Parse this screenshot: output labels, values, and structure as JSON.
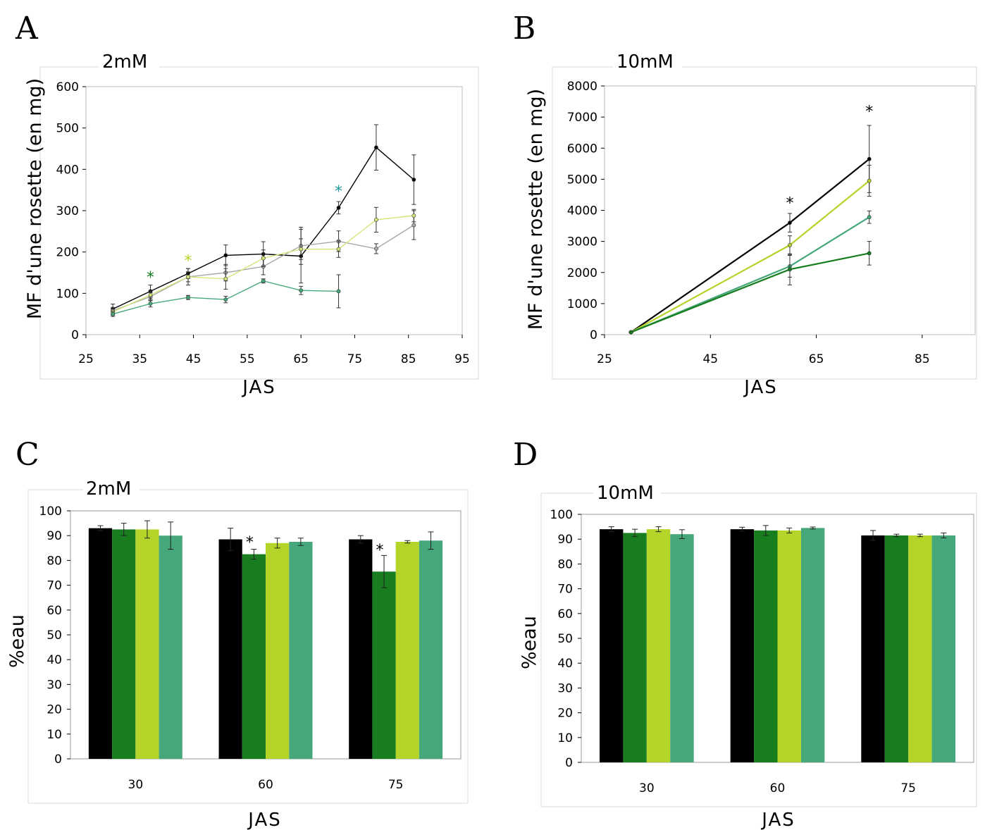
{
  "colors": {
    "black": "#000000",
    "dark_green": "#177d1f",
    "yellow_green": "#b4d42a",
    "teal_green": "#46a77a",
    "gray": "#a8a8a8",
    "light_yellow": "#d6e57a",
    "star_teal": "#1a9a9a"
  },
  "chart_data": [
    {
      "panel": "A",
      "type": "line",
      "title": "2mM",
      "xlabel": "JAS",
      "ylabel": "MF d'une rosette (en mg)",
      "xlim": [
        25,
        95
      ],
      "ylim": [
        0,
        600
      ],
      "xticks": [
        "25",
        "35",
        "45",
        "55",
        "65",
        "75",
        "85",
        "95"
      ],
      "yticks": [
        "0",
        "100",
        "200",
        "300",
        "400",
        "500",
        "600"
      ],
      "series": [
        {
          "color": "#000000",
          "x": [
            30,
            37,
            44,
            51,
            58,
            65,
            72,
            79,
            86
          ],
          "values": [
            62,
            105,
            148,
            192,
            195,
            190,
            307,
            453,
            375
          ],
          "err": [
            12,
            15,
            12,
            25,
            30,
            65,
            15,
            55,
            60
          ]
        },
        {
          "color": "#a8a8a8",
          "x": [
            30,
            37,
            44,
            51,
            58,
            65,
            72,
            79,
            86
          ],
          "values": [
            58,
            92,
            140,
            150,
            165,
            215,
            226,
            208,
            265
          ],
          "err": [
            8,
            10,
            12,
            20,
            20,
            45,
            25,
            12,
            35
          ]
        },
        {
          "color": "#d6e57a",
          "x": [
            30,
            37,
            44,
            51,
            58,
            65,
            72,
            79,
            86
          ],
          "values": [
            55,
            96,
            140,
            135,
            185,
            207,
            207,
            278,
            288
          ],
          "err": [
            8,
            10,
            20,
            25,
            20,
            25,
            20,
            30,
            15
          ]
        },
        {
          "color": "#46a77a",
          "x": [
            30,
            37,
            44,
            51,
            58,
            65,
            72
          ],
          "values": [
            50,
            75,
            90,
            85,
            130,
            107,
            105
          ],
          "err": [
            6,
            8,
            5,
            8,
            5,
            10,
            40
          ]
        }
      ],
      "annotations": [
        {
          "text": "*",
          "x": 37,
          "y": 140,
          "color": "#177d1f"
        },
        {
          "text": "*",
          "x": 44,
          "y": 180,
          "color": "#b4d42a"
        },
        {
          "text": "*",
          "x": 72,
          "y": 348,
          "color": "#1a9a9a"
        }
      ]
    },
    {
      "panel": "B",
      "type": "line",
      "title": "10mM",
      "xlabel": "JAS",
      "ylabel": "MF d'une rosette (en mg)",
      "xlim": [
        25,
        95
      ],
      "ylim": [
        0,
        8000
      ],
      "xticks": [
        "25",
        "45",
        "65",
        "85"
      ],
      "yticks": [
        "0",
        "1000",
        "2000",
        "3000",
        "4000",
        "5000",
        "6000",
        "7000",
        "8000"
      ],
      "series": [
        {
          "color": "#000000",
          "x": [
            30,
            60,
            75
          ],
          "values": [
            80,
            3600,
            5650
          ],
          "err": [
            20,
            300,
            1080
          ]
        },
        {
          "color": "#b4d42a",
          "x": [
            30,
            60,
            75
          ],
          "values": [
            80,
            2880,
            4950
          ],
          "err": [
            20,
            300,
            500
          ]
        },
        {
          "color": "#46a77a",
          "x": [
            30,
            60,
            75
          ],
          "values": [
            80,
            2200,
            3780
          ],
          "err": [
            20,
            350,
            200
          ]
        },
        {
          "color": "#177d1f",
          "x": [
            30,
            60,
            75
          ],
          "values": [
            80,
            2100,
            2620
          ],
          "err": [
            20,
            500,
            380
          ]
        }
      ],
      "annotations": [
        {
          "text": "*",
          "x": 60,
          "y": 4250,
          "color": "#000000"
        },
        {
          "text": "*",
          "x": 75,
          "y": 7200,
          "color": "#000000"
        }
      ]
    },
    {
      "panel": "C",
      "type": "bar",
      "title": "2mM",
      "xlabel": "JAS",
      "ylabel": "%eau",
      "ylim": [
        0,
        100
      ],
      "categories": [
        "30",
        "60",
        "75"
      ],
      "yticks": [
        "0",
        "10",
        "20",
        "30",
        "40",
        "50",
        "60",
        "70",
        "80",
        "90",
        "100"
      ],
      "series": [
        {
          "color": "#000000",
          "values": [
            93,
            88.5,
            88.5
          ],
          "err": [
            1,
            4.5,
            1.5
          ]
        },
        {
          "color": "#177d1f",
          "values": [
            92.5,
            82.5,
            75.5
          ],
          "err": [
            2.5,
            2,
            6.5
          ]
        },
        {
          "color": "#b4d42a",
          "values": [
            92.5,
            87,
            87.5
          ],
          "err": [
            3.5,
            2,
            0.5
          ]
        },
        {
          "color": "#46a77a",
          "values": [
            90,
            87.5,
            88
          ],
          "err": [
            5.5,
            1.5,
            3.5
          ]
        }
      ],
      "annotations": [
        {
          "text": "*",
          "category": 1,
          "series": 1,
          "y": 88
        },
        {
          "text": "*",
          "category": 2,
          "series": 1,
          "y": 85
        }
      ]
    },
    {
      "panel": "D",
      "type": "bar",
      "title": "10mM",
      "xlabel": "JAS",
      "ylabel": "%eau",
      "ylim": [
        0,
        100
      ],
      "categories": [
        "30",
        "60",
        "75"
      ],
      "yticks": [
        "0",
        "10",
        "20",
        "30",
        "40",
        "50",
        "60",
        "70",
        "80",
        "90",
        "100"
      ],
      "series": [
        {
          "color": "#000000",
          "values": [
            94,
            94,
            91.5
          ],
          "err": [
            1,
            0.8,
            2
          ]
        },
        {
          "color": "#177d1f",
          "values": [
            92.5,
            93.5,
            91.5
          ],
          "err": [
            1.5,
            2,
            0.5
          ]
        },
        {
          "color": "#b4d42a",
          "values": [
            94,
            93.5,
            91.5
          ],
          "err": [
            1,
            1,
            0.5
          ]
        },
        {
          "color": "#46a77a",
          "values": [
            92,
            94.5,
            91.5
          ],
          "err": [
            1.8,
            0.4,
            1
          ]
        }
      ],
      "annotations": []
    }
  ]
}
